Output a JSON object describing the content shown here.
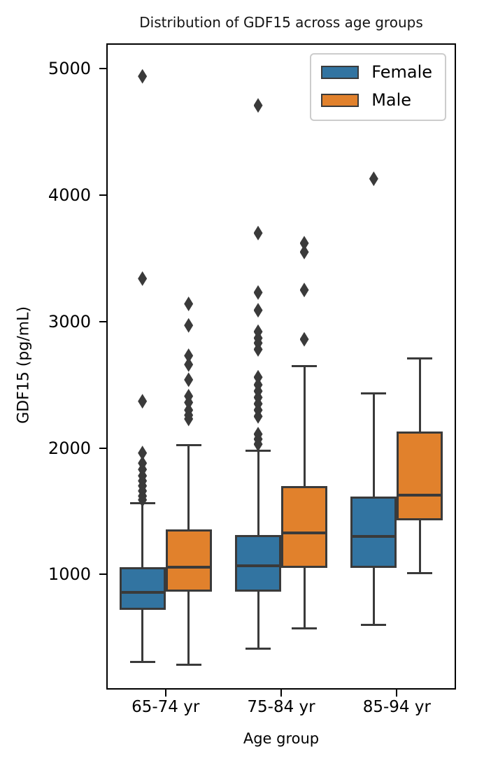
{
  "chart_data": {
    "type": "boxplot",
    "title": "Distribution of GDF15 across age groups",
    "xlabel": "Age group",
    "ylabel": "GDF15 (pg/mL)",
    "categories": [
      "65-74 yr",
      "75-84 yr",
      "85-94 yr"
    ],
    "y_ticks": [
      1000,
      2000,
      3000,
      4000,
      5000
    ],
    "ylim": [
      100,
      5190
    ],
    "grid": false,
    "legend": {
      "position": "upper right",
      "entries": [
        "Female",
        "Male"
      ]
    },
    "colors": {
      "female": "#3274A1",
      "male": "#E1812C",
      "line": "#3A3A3A",
      "flier": "#3A3A3A",
      "spine": "#000000",
      "legend_border": "#CCCCCC"
    },
    "series": [
      {
        "name": "Female",
        "color_key": "female",
        "boxes": [
          {
            "category": "65-74 yr",
            "whisker_low": 305,
            "q1": 720,
            "median": 860,
            "q3": 1055,
            "whisker_high": 1565,
            "outliers": [
              1590,
              1620,
              1660,
              1700,
              1740,
              1780,
              1830,
              1880,
              1960,
              2370,
              3340,
              4940
            ]
          },
          {
            "category": "75-84 yr",
            "whisker_low": 415,
            "q1": 865,
            "median": 1070,
            "q3": 1310,
            "whisker_high": 1980,
            "outliers": [
              2030,
              2070,
              2110,
              2250,
              2300,
              2350,
              2400,
              2450,
              2500,
              2560,
              2780,
              2830,
              2870,
              2920,
              3090,
              3230,
              3700,
              4710
            ]
          },
          {
            "category": "85-94 yr",
            "whisker_low": 600,
            "q1": 1050,
            "median": 1300,
            "q3": 1615,
            "whisker_high": 2430,
            "outliers": [
              4130
            ]
          }
        ]
      },
      {
        "name": "Male",
        "color_key": "male",
        "boxes": [
          {
            "category": "65-74 yr",
            "whisker_low": 285,
            "q1": 865,
            "median": 1055,
            "q3": 1355,
            "whisker_high": 2020,
            "outliers": [
              2230,
              2260,
              2300,
              2360,
              2410,
              2540,
              2660,
              2730,
              2970,
              3140
            ]
          },
          {
            "category": "75-84 yr",
            "whisker_low": 575,
            "q1": 1050,
            "median": 1330,
            "q3": 1700,
            "whisker_high": 2650,
            "outliers": [
              2860,
              3250,
              3550,
              3620
            ]
          },
          {
            "category": "85-94 yr",
            "whisker_low": 1010,
            "q1": 1430,
            "median": 1625,
            "q3": 2130,
            "whisker_high": 2710,
            "outliers": []
          }
        ]
      }
    ]
  }
}
